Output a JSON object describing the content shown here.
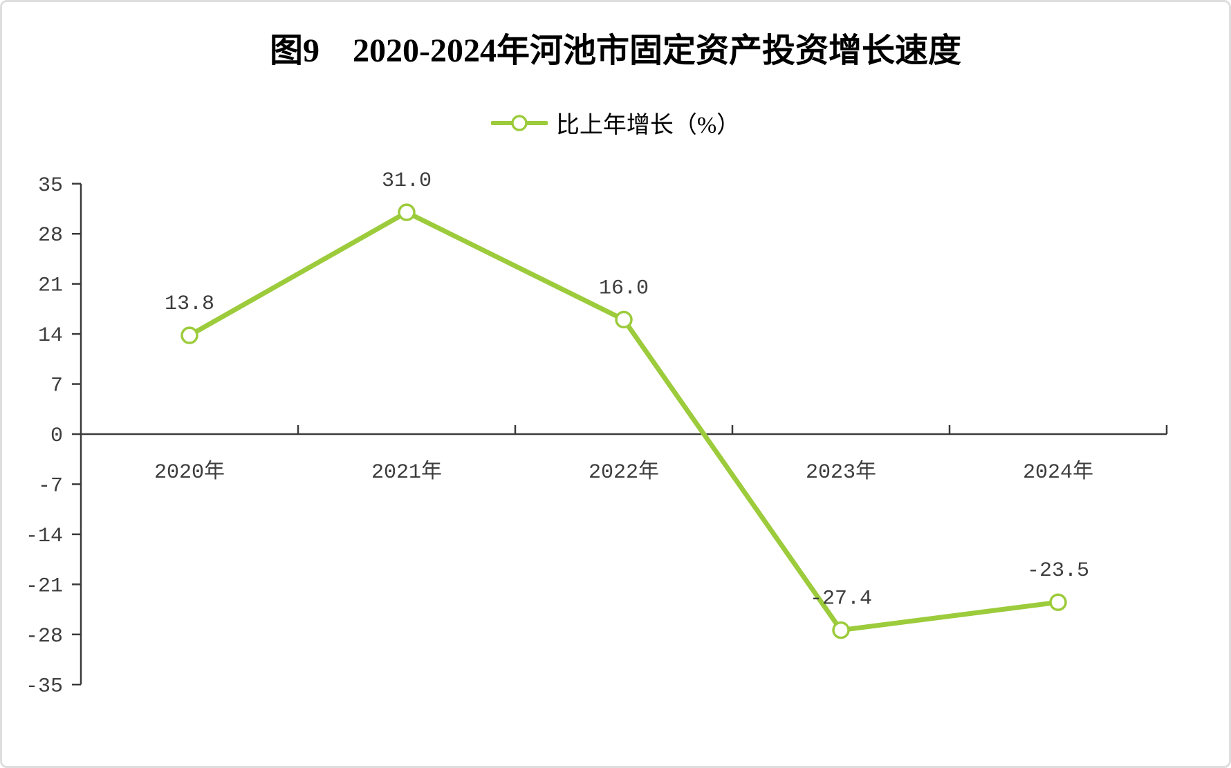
{
  "chart_data": {
    "type": "line",
    "title": "图9　2020-2024年河池市固定资产投资增长速度",
    "legend": "比上年增长（%）",
    "categories": [
      "2020年",
      "2021年",
      "2022年",
      "2023年",
      "2024年"
    ],
    "series": [
      {
        "name": "比上年增长（%）",
        "values": [
          13.8,
          31.0,
          16.0,
          -27.4,
          -23.5
        ]
      }
    ],
    "data_labels": [
      "13.8",
      "31.0",
      "16.0",
      "-27.4",
      "-23.5"
    ],
    "yticks": [
      35,
      28,
      21,
      14,
      7,
      0,
      -7,
      -14,
      -21,
      -28,
      -35
    ],
    "ylim": [
      -35,
      35
    ],
    "xlabel": "",
    "ylabel": "",
    "grid": false,
    "legend_position": "top-center",
    "colors": {
      "line": "#9CCB3B",
      "marker_fill": "#ffffff",
      "axis": "#3a3a3a",
      "tick_text": "#3d3d3d",
      "data_label_text": "#3d3d3d",
      "title_text": "#000000"
    },
    "marker": "open-circle"
  }
}
